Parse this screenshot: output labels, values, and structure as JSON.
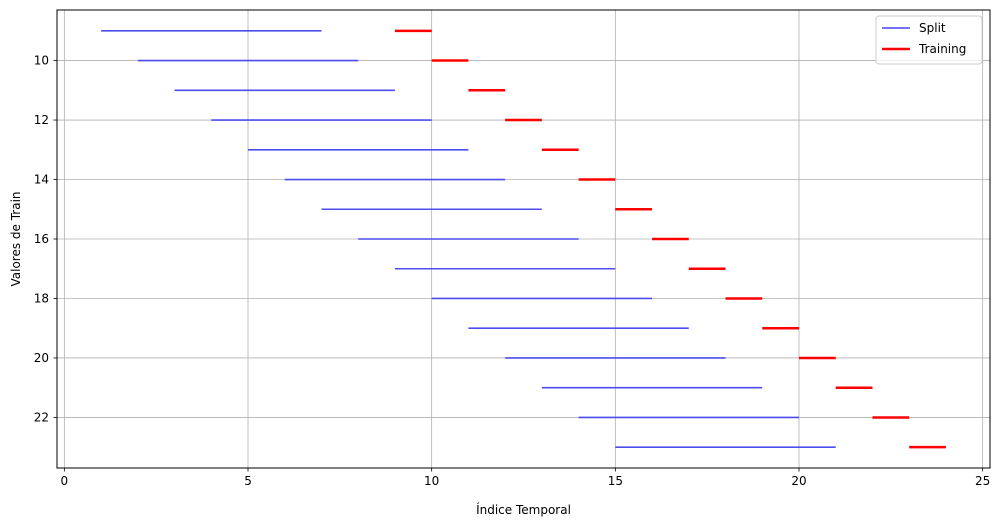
{
  "chart_data": {
    "type": "line",
    "title": "",
    "xlabel": "Índice Temporal",
    "ylabel": "Valores de Train",
    "xlim": [
      -0.2,
      25.2
    ],
    "ylim": [
      23.7,
      8.3
    ],
    "y_inverted": true,
    "xticks": [
      0,
      5,
      10,
      15,
      20,
      25
    ],
    "yticks": [
      10,
      12,
      14,
      16,
      18,
      20,
      22
    ],
    "grid": true,
    "legend_position": "top-right",
    "series": [
      {
        "name": "Split",
        "color": "#4444ee",
        "segments": [
          {
            "y": 9,
            "x_start": 1,
            "x_end": 7
          },
          {
            "y": 10,
            "x_start": 2,
            "x_end": 8
          },
          {
            "y": 11,
            "x_start": 3,
            "x_end": 9
          },
          {
            "y": 12,
            "x_start": 4,
            "x_end": 10
          },
          {
            "y": 13,
            "x_start": 5,
            "x_end": 11
          },
          {
            "y": 14,
            "x_start": 6,
            "x_end": 12
          },
          {
            "y": 15,
            "x_start": 7,
            "x_end": 13
          },
          {
            "y": 16,
            "x_start": 8,
            "x_end": 14
          },
          {
            "y": 17,
            "x_start": 9,
            "x_end": 15
          },
          {
            "y": 18,
            "x_start": 10,
            "x_end": 16
          },
          {
            "y": 19,
            "x_start": 11,
            "x_end": 17
          },
          {
            "y": 20,
            "x_start": 12,
            "x_end": 18
          },
          {
            "y": 21,
            "x_start": 13,
            "x_end": 19
          },
          {
            "y": 22,
            "x_start": 14,
            "x_end": 20
          },
          {
            "y": 23,
            "x_start": 15,
            "x_end": 21
          }
        ]
      },
      {
        "name": "Training",
        "color": "#ff0000",
        "segments": [
          {
            "y": 9,
            "x_start": 9,
            "x_end": 10
          },
          {
            "y": 10,
            "x_start": 10,
            "x_end": 11
          },
          {
            "y": 11,
            "x_start": 11,
            "x_end": 12
          },
          {
            "y": 12,
            "x_start": 12,
            "x_end": 13
          },
          {
            "y": 13,
            "x_start": 13,
            "x_end": 14
          },
          {
            "y": 14,
            "x_start": 14,
            "x_end": 15
          },
          {
            "y": 15,
            "x_start": 15,
            "x_end": 16
          },
          {
            "y": 16,
            "x_start": 16,
            "x_end": 17
          },
          {
            "y": 17,
            "x_start": 17,
            "x_end": 18
          },
          {
            "y": 18,
            "x_start": 18,
            "x_end": 19
          },
          {
            "y": 19,
            "x_start": 19,
            "x_end": 20
          },
          {
            "y": 20,
            "x_start": 20,
            "x_end": 21
          },
          {
            "y": 21,
            "x_start": 21,
            "x_end": 22
          },
          {
            "y": 22,
            "x_start": 22,
            "x_end": 23
          },
          {
            "y": 23,
            "x_start": 23,
            "x_end": 24
          }
        ]
      }
    ]
  }
}
